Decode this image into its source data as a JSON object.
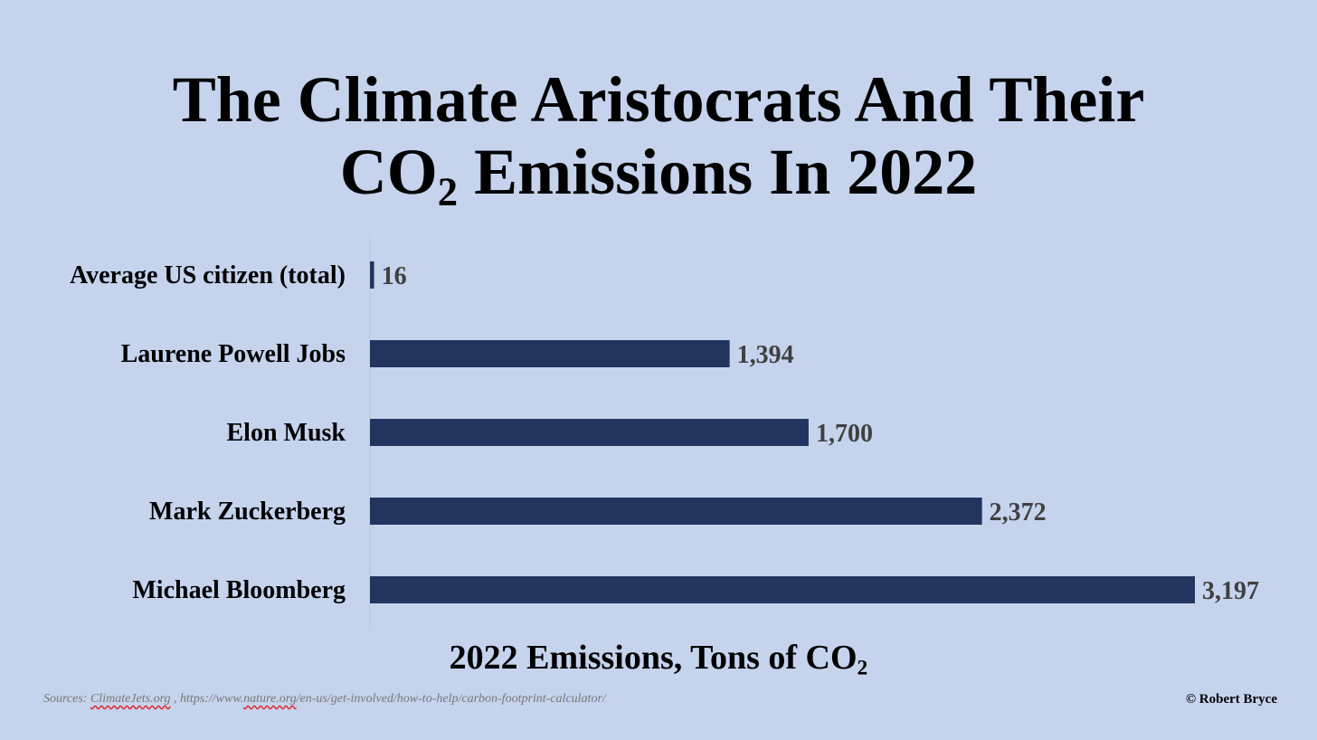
{
  "title": {
    "line1": "The Climate Aristocrats And Their",
    "line2_prefix": "CO",
    "line2_sub": "2",
    "line2_suffix": " Emissions In 2022"
  },
  "chart_data": {
    "type": "bar",
    "orientation": "horizontal",
    "categories": [
      "Average US citizen (total)",
      "Laurene Powell Jobs",
      "Elon Musk",
      "Mark Zuckerberg",
      "Michael Bloomberg"
    ],
    "values": [
      16,
      1394,
      1700,
      2372,
      3197
    ],
    "value_labels": [
      "16",
      "1,394",
      "1,700",
      "2,372",
      "3,197"
    ],
    "xlabel": {
      "prefix": "2022 Emissions, Tons of CO",
      "sub": "2"
    },
    "xlim": [
      0,
      3197
    ],
    "grid": false,
    "legend": "none",
    "bar_color": "#21355f",
    "axis_color": "#b8c6e0"
  },
  "footer": {
    "sources_prefix": "Sources: ",
    "sources_link1": "ClimateJets.org",
    "sources_sep": " , ",
    "sources_link2_prefix": "https://www.",
    "sources_link2_squiggle": "nature.org",
    "sources_link2_rest": "/en-us/get-involved/how-to-help/carbon-footprint-calculator/",
    "copyright": "© Robert Bryce"
  },
  "colors": {
    "background": "#c5d3ed",
    "bar": "#21355f",
    "value_text": "#404040"
  }
}
